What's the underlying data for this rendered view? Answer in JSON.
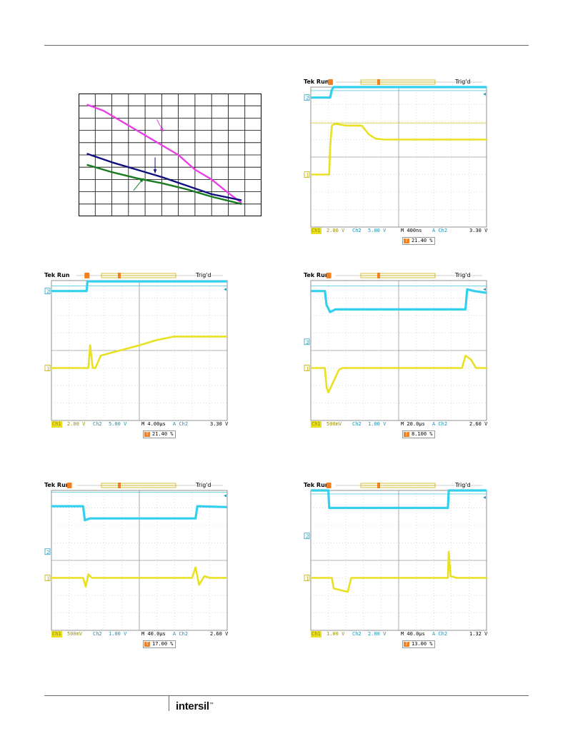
{
  "brand": {
    "logo_text": "intersil",
    "logo_mark": "™"
  },
  "graph": {
    "type": "line",
    "rows": 10,
    "cols": 11,
    "grid": true,
    "series": [
      {
        "color": "#e83fe8",
        "values": [
          [
            0.5,
            9.1
          ],
          [
            1.5,
            8.6
          ],
          [
            3,
            7.4
          ],
          [
            4.5,
            6.2
          ],
          [
            6,
            5.0
          ],
          [
            7,
            3.8
          ],
          [
            8,
            3.0
          ],
          [
            9,
            1.9
          ],
          [
            9.8,
            1.1
          ]
        ]
      },
      {
        "color": "#101080",
        "values": [
          [
            0.5,
            5.1
          ],
          [
            2,
            4.4
          ],
          [
            3.5,
            3.8
          ],
          [
            5,
            3.2
          ],
          [
            6.5,
            2.5
          ],
          [
            8,
            1.8
          ],
          [
            9.8,
            1.3
          ]
        ]
      },
      {
        "color": "#1a7a20",
        "values": [
          [
            0.5,
            4.2
          ],
          [
            2,
            3.6
          ],
          [
            3.5,
            3.1
          ],
          [
            5,
            2.7
          ],
          [
            6.5,
            2.2
          ],
          [
            8,
            1.6
          ],
          [
            9.8,
            1.0
          ]
        ]
      }
    ],
    "arrows": [
      {
        "color": "#e83fe8",
        "from": [
          4.7,
          7.9
        ],
        "to": [
          5.1,
          6.9
        ]
      },
      {
        "color": "#101080",
        "from": [
          4.6,
          4.8
        ],
        "to": [
          4.6,
          3.5
        ]
      },
      {
        "color": "#1a7a20",
        "from": [
          3.3,
          2.1
        ],
        "to": [
          3.9,
          3.1
        ]
      }
    ]
  },
  "scopes": [
    {
      "id": "s1",
      "tek": "Tek Run",
      "trig": "Trig'd",
      "ch1_label": "Ch1",
      "ch1_scale": "2.00 V",
      "ch2_label": "Ch2",
      "ch2_scale": "5.00 V",
      "timebase": "M 400ns",
      "trig_ch": "A  Ch2",
      "trig_level": "3.30 V",
      "percent": "21.40 %",
      "ch1_marker_div": 3,
      "ch2_marker_div": 7.4,
      "trig_pos_div": 1.1,
      "ch2_trace": [
        [
          0,
          7.4
        ],
        [
          1.1,
          7.4
        ],
        [
          1.2,
          7.85
        ],
        [
          1.3,
          8.0
        ],
        [
          10,
          8.0
        ]
      ],
      "ch1_trace": [
        [
          0,
          3.0
        ],
        [
          1.05,
          3.0
        ],
        [
          1.1,
          4.6
        ],
        [
          1.2,
          5.8
        ],
        [
          1.4,
          5.9
        ],
        [
          2,
          5.8
        ],
        [
          2.9,
          5.8
        ],
        [
          3.3,
          5.3
        ],
        [
          3.7,
          5.05
        ],
        [
          4.2,
          5.0
        ],
        [
          10,
          5.0
        ]
      ],
      "ch2_ref": 7.8,
      "ch1_ref": 5.95
    },
    {
      "id": "s2",
      "tek": "Tek Run",
      "trig": "Trig'd",
      "ch1_label": "Ch1",
      "ch1_scale": "2.00 V",
      "ch2_label": "Ch2",
      "ch2_scale": "5.00 V",
      "timebase": "M 4.00µs",
      "trig_ch": "A  Ch2",
      "trig_level": "3.30 V",
      "percent": "21.40 %",
      "ch1_marker_div": 3,
      "ch2_marker_div": 7.4,
      "trig_pos_div": 2,
      "ch2_trace": [
        [
          0,
          7.4
        ],
        [
          2,
          7.4
        ],
        [
          2.05,
          7.95
        ],
        [
          10,
          7.95
        ]
      ],
      "ch1_trace": [
        [
          0,
          3.0
        ],
        [
          2.1,
          3.0
        ],
        [
          2.2,
          4.3
        ],
        [
          2.35,
          3.0
        ],
        [
          2.5,
          3.0
        ],
        [
          2.8,
          3.7
        ],
        [
          3.5,
          3.9
        ],
        [
          5,
          4.3
        ],
        [
          6,
          4.6
        ],
        [
          7,
          4.8
        ],
        [
          10,
          4.8
        ]
      ],
      "ch2_ref": 7.7,
      "ch1_ref": 0
    },
    {
      "id": "s3",
      "tek": "Tek Run",
      "trig": "Trig'd",
      "ch1_label": "Ch1",
      "ch1_scale": "500mV",
      "ch2_label": "Ch2",
      "ch2_scale": "1.00 V",
      "timebase": "M 20.0µs",
      "trig_ch": "A  Ch2",
      "trig_level": "2.60 V",
      "percent": "8.100 %",
      "ch1_marker_div": 3,
      "ch2_marker_div": 4.5,
      "trig_pos_div": 1,
      "ch2_trace": [
        [
          0,
          7.4
        ],
        [
          0.8,
          7.4
        ],
        [
          0.9,
          6.6
        ],
        [
          1.1,
          6.2
        ],
        [
          1.4,
          6.35
        ],
        [
          8.8,
          6.35
        ],
        [
          8.9,
          7.5
        ],
        [
          9.3,
          7.4
        ],
        [
          10,
          7.3
        ]
      ],
      "ch1_trace": [
        [
          0,
          3.0
        ],
        [
          0.8,
          3.0
        ],
        [
          0.9,
          1.9
        ],
        [
          1.0,
          1.6
        ],
        [
          1.6,
          2.9
        ],
        [
          1.8,
          3.0
        ],
        [
          8.6,
          3.0
        ],
        [
          8.8,
          3.7
        ],
        [
          9.1,
          3.5
        ],
        [
          9.4,
          3.0
        ],
        [
          10,
          3.0
        ]
      ],
      "ch2_ref": 7.7,
      "ch1_ref": 0
    },
    {
      "id": "s4",
      "tek": "Tek Run",
      "trig": "Trig'd",
      "ch1_label": "Ch1",
      "ch1_scale": "500mV",
      "ch2_label": "Ch2",
      "ch2_scale": "1.00 V",
      "timebase": "M 40.0µs",
      "trig_ch": "A  Ch2",
      "trig_level": "2.60 V",
      "percent": "17.00 %",
      "ch1_marker_div": 3,
      "ch2_marker_div": 4.5,
      "trig_pos_div": 1,
      "ch2_trace": [
        [
          0,
          7.1
        ],
        [
          1.8,
          7.1
        ],
        [
          1.9,
          6.3
        ],
        [
          2.2,
          6.4
        ],
        [
          8.2,
          6.4
        ],
        [
          8.3,
          7.1
        ],
        [
          10,
          7.05
        ]
      ],
      "ch1_trace": [
        [
          0,
          3.0
        ],
        [
          1.8,
          3.0
        ],
        [
          1.95,
          2.5
        ],
        [
          2.1,
          3.2
        ],
        [
          2.3,
          3.0
        ],
        [
          8.0,
          3.0
        ],
        [
          8.2,
          3.6
        ],
        [
          8.4,
          2.6
        ],
        [
          8.7,
          3.1
        ],
        [
          9,
          3.0
        ],
        [
          10,
          3.0
        ]
      ],
      "ch2_ref": 7.9,
      "ch1_ref": 0
    },
    {
      "id": "s5",
      "tek": "Tek Run",
      "trig": "Trig'd",
      "ch1_label": "Ch1",
      "ch1_scale": "1.00 V",
      "ch2_label": "Ch2",
      "ch2_scale": "2.00 V",
      "timebase": "M 40.0µs",
      "trig_ch": "A  Ch2",
      "trig_level": "1.32 V",
      "percent": "13.00 %",
      "ch1_marker_div": 3,
      "ch2_marker_div": 5.4,
      "trig_pos_div": 1,
      "ch2_trace": [
        [
          0,
          8.0
        ],
        [
          1,
          8.0
        ],
        [
          1.05,
          7.0
        ],
        [
          7.8,
          7.0
        ],
        [
          7.85,
          8.0
        ],
        [
          10,
          8.0
        ]
      ],
      "ch1_trace": [
        [
          0,
          3.0
        ],
        [
          1.2,
          3.0
        ],
        [
          1.3,
          2.4
        ],
        [
          2.1,
          2.2
        ],
        [
          2.3,
          3.0
        ],
        [
          7.8,
          3.0
        ],
        [
          7.85,
          4.5
        ],
        [
          7.95,
          3.1
        ],
        [
          8.3,
          3.0
        ],
        [
          10,
          3.0
        ]
      ],
      "ch2_ref": 7.8,
      "ch1_ref": 0
    }
  ]
}
